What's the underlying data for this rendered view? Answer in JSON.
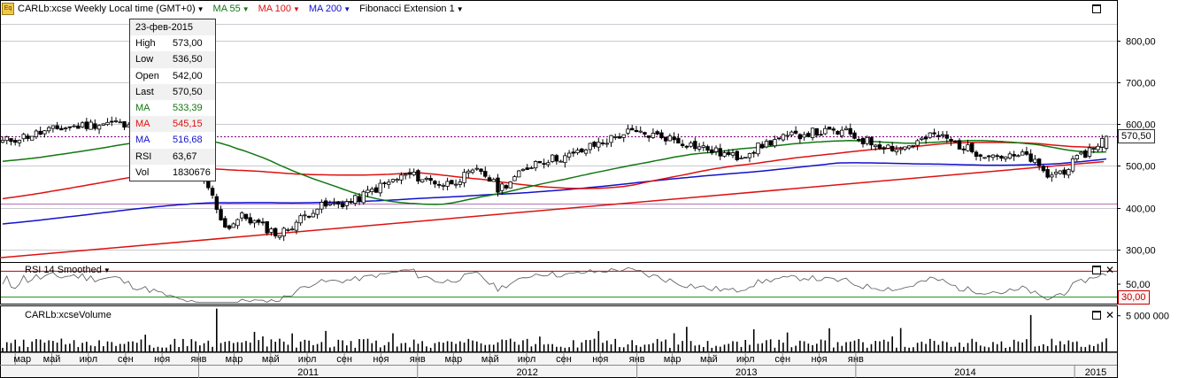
{
  "toolbar": {
    "symbol_label": "CARLb:xcse Weekly Local time (GMT+0)",
    "ma55_label": "MA 55",
    "ma100_label": "MA 100",
    "ma200_label": "MA 200",
    "fib_label": "Fibonacci Extension 1",
    "icon": "eq-icon",
    "dropdown_icon": "triangle-down-icon"
  },
  "colors": {
    "up": "#ffffff",
    "down": "#000000",
    "ma55": "#117711",
    "ma100": "#dd1111",
    "ma200": "#1111cc",
    "fib": "#800080",
    "trend": "#dd1111",
    "rsi_line": "#555555",
    "rsi_upper": "#c00000",
    "rsi_lower": "#1a8f1a",
    "grid": "#c8cbd0"
  },
  "info_box": {
    "date": "23-фев-2015",
    "rows": [
      {
        "k": "High",
        "v": "573,00",
        "color": "#000000"
      },
      {
        "k": "Low",
        "v": "536,50",
        "color": "#000000"
      },
      {
        "k": "Open",
        "v": "542,00",
        "color": "#000000"
      },
      {
        "k": "Last",
        "v": "570,50",
        "color": "#000000"
      },
      {
        "k": "MA",
        "v": "533,39",
        "color": "#117711"
      },
      {
        "k": "MA",
        "v": "545,15",
        "color": "#dd1111"
      },
      {
        "k": "MA",
        "v": "516,68",
        "color": "#1111cc"
      },
      {
        "k": "RSI",
        "v": "63,67",
        "color": "#000000"
      },
      {
        "k": "Vol",
        "v": "1830676",
        "color": "#000000"
      }
    ]
  },
  "price_axis": {
    "ticks": [
      "300,00",
      "400,00",
      "500,00",
      "600,00",
      "700,00",
      "800,00"
    ],
    "current_label": "570,50",
    "current_value": 570.5,
    "ylim": [
      270,
      850
    ]
  },
  "rsi": {
    "label": "RSI 14 Smoothed",
    "ticks": [
      "50,00"
    ],
    "lower_label": "30,00",
    "levels": [
      70,
      30
    ],
    "ylim": [
      20,
      80
    ]
  },
  "volume": {
    "label": "CARLb:xcseVolume",
    "ticks": [
      "5 000 000"
    ],
    "ylim": [
      0,
      6200000
    ]
  },
  "time_axis": {
    "months": [
      "мар",
      "май",
      "июл",
      "сен",
      "ноя",
      "янв",
      "мар",
      "май",
      "июл",
      "сен",
      "ноя",
      "янв",
      "мар",
      "май",
      "июл",
      "сен",
      "ноя",
      "янв",
      "мар",
      "май",
      "июл",
      "сен",
      "ноя",
      "янв"
    ],
    "years": [
      "2011",
      "2012",
      "2013",
      "2014",
      "2015"
    ]
  },
  "chart_data": {
    "type": "candlestick",
    "interval": "weekly",
    "title": "CARLb:xcse Weekly Local time (GMT+0)",
    "series_names": [
      "MA 55",
      "MA 100",
      "MA 200",
      "Fibonacci Extension 1"
    ],
    "last_bar": {
      "date": "2015-02-23",
      "open": 542.0,
      "high": 573.0,
      "low": 536.5,
      "close": 570.5,
      "volume": 1830676
    },
    "ma_last": {
      "MA 55": 533.39,
      "MA 100": 545.15,
      "MA 200": 516.68
    },
    "rsi_last": 63.67,
    "fibonacci_levels": [
      570.5,
      410
    ],
    "trend_line": [
      {
        "date": "2010-02",
        "value": 280
      },
      {
        "date": "2015-02",
        "value": 510
      }
    ],
    "y_range": [
      270,
      850
    ],
    "close_anchors": [
      [
        "2010-02",
        558
      ],
      [
        "2010-05",
        590
      ],
      [
        "2010-08",
        605
      ],
      [
        "2010-10",
        565
      ],
      [
        "2010-12",
        500
      ],
      [
        "2011-01",
        455
      ],
      [
        "2011-02",
        350
      ],
      [
        "2011-03",
        380
      ],
      [
        "2011-05",
        335
      ],
      [
        "2011-07",
        400
      ],
      [
        "2011-09",
        415
      ],
      [
        "2011-10",
        440
      ],
      [
        "2011-12",
        480
      ],
      [
        "2012-02",
        455
      ],
      [
        "2012-04",
        490
      ],
      [
        "2012-05",
        445
      ],
      [
        "2012-06",
        475
      ],
      [
        "2012-07",
        510
      ],
      [
        "2012-09",
        525
      ],
      [
        "2012-10",
        545
      ],
      [
        "2012-12",
        580
      ],
      [
        "2013-02",
        570
      ],
      [
        "2013-04",
        545
      ],
      [
        "2013-06",
        520
      ],
      [
        "2013-08",
        560
      ],
      [
        "2013-10",
        580
      ],
      [
        "2013-12",
        580
      ],
      [
        "2014-01",
        560
      ],
      [
        "2014-03",
        540
      ],
      [
        "2014-05",
        575
      ],
      [
        "2014-07",
        535
      ],
      [
        "2014-09",
        520
      ],
      [
        "2014-10",
        525
      ],
      [
        "2014-11",
        475
      ],
      [
        "2014-12",
        490
      ],
      [
        "2015-02",
        570
      ]
    ]
  }
}
